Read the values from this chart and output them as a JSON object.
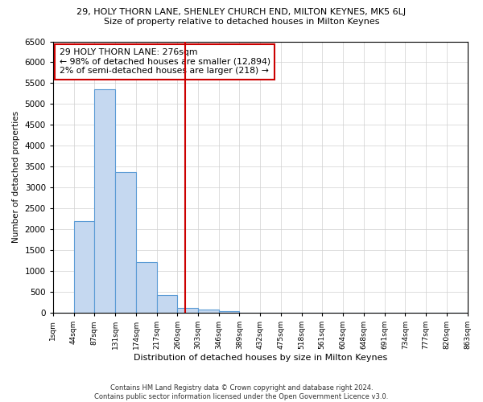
{
  "title_line1": "29, HOLY THORN LANE, SHENLEY CHURCH END, MILTON KEYNES, MK5 6LJ",
  "title_line2": "Size of property relative to detached houses in Milton Keynes",
  "xlabel": "Distribution of detached houses by size in Milton Keynes",
  "ylabel": "Number of detached properties",
  "footnote": "Contains HM Land Registry data © Crown copyright and database right 2024.\nContains public sector information licensed under the Open Government Licence v3.0.",
  "annotation_line1": "29 HOLY THORN LANE: 276sqm",
  "annotation_line2": "← 98% of detached houses are smaller (12,894)",
  "annotation_line3": "2% of semi-detached houses are larger (218) →",
  "property_line_x": 276,
  "bar_edges": [
    1,
    44,
    87,
    131,
    174,
    217,
    260,
    303,
    346,
    389,
    432,
    475,
    518,
    561,
    604,
    648,
    691,
    734,
    777,
    820,
    863
  ],
  "bar_heights": [
    0,
    2200,
    5350,
    3380,
    1220,
    430,
    120,
    70,
    30,
    10,
    5,
    2,
    1,
    0,
    0,
    0,
    0,
    0,
    0,
    0
  ],
  "tick_labels": [
    "1sqm",
    "44sqm",
    "87sqm",
    "131sqm",
    "174sqm",
    "217sqm",
    "260sqm",
    "303sqm",
    "346sqm",
    "389sqm",
    "432sqm",
    "475sqm",
    "518sqm",
    "561sqm",
    "604sqm",
    "648sqm",
    "691sqm",
    "734sqm",
    "777sqm",
    "820sqm",
    "863sqm"
  ],
  "bar_color": "#c5d8f0",
  "bar_edge_color": "#5b9bd5",
  "property_line_color": "#cc0000",
  "annotation_box_edge_color": "#cc0000",
  "ylim": [
    0,
    6500
  ],
  "yticks": [
    0,
    500,
    1000,
    1500,
    2000,
    2500,
    3000,
    3500,
    4000,
    4500,
    5000,
    5500,
    6000,
    6500
  ],
  "bg_color": "#ffffff",
  "grid_color": "#d0d0d0"
}
